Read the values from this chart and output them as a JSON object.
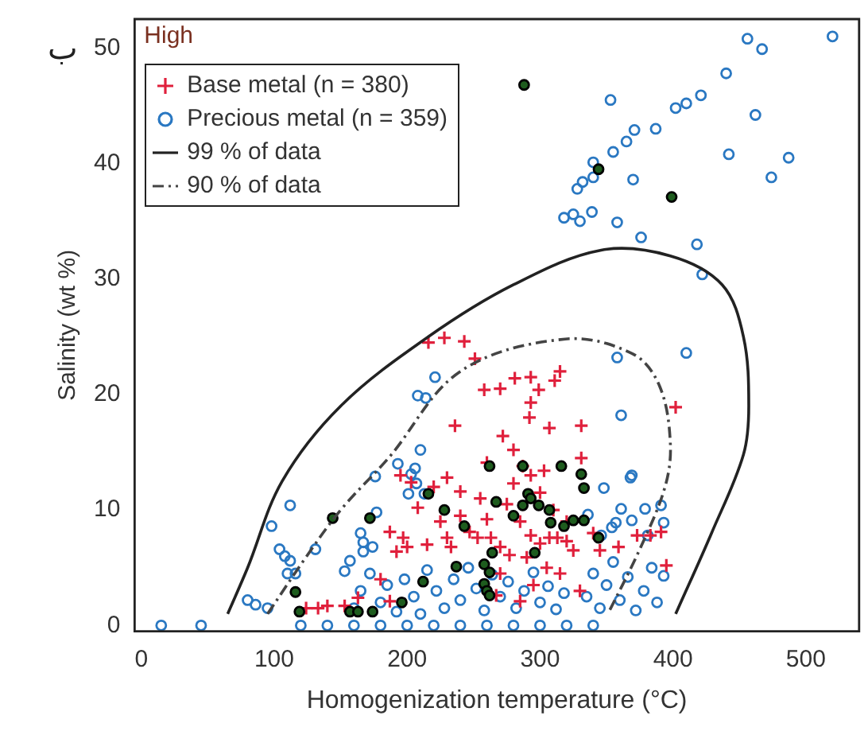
{
  "chart_data": {
    "type": "scatter",
    "title": "High",
    "xlabel": "Homogenization temperature (°C)",
    "ylabel": "Salinity (wt %)",
    "annotations": [
      "ب"
    ],
    "xlim": [
      -5,
      540
    ],
    "xticks": [
      0,
      100,
      200,
      300,
      400,
      500
    ],
    "ylim": [
      -0.5,
      52.5
    ],
    "yticks": [
      0,
      10,
      20,
      30,
      40,
      50
    ],
    "grid": false,
    "legend": "top left",
    "series": [
      {
        "name": "Base metal (n = 380)",
        "type": "scatter",
        "marker": "cross",
        "color": "#e0203c",
        "x": [
          216,
          228,
          243,
          251,
          258,
          270,
          281,
          293,
          311,
          315,
          293,
          299,
          236,
          272,
          292,
          307,
          331,
          402,
          280,
          260,
          287,
          331,
          303,
          195,
          203,
          230,
          240,
          208,
          220,
          187,
          197,
          200,
          192,
          233,
          247,
          230,
          260,
          263,
          253,
          270,
          277,
          293,
          300,
          307,
          313,
          320,
          290,
          280,
          293,
          133,
          140,
          153,
          163,
          187,
          267,
          285,
          395,
          391,
          383,
          373,
          359,
          300,
          310,
          320,
          275,
          255,
          285,
          305,
          295,
          315,
          325,
          340,
          345,
          330,
          270,
          240,
          225,
          215,
          124,
          180
        ],
        "values": [
          24.5,
          24.9,
          24.6,
          23.1,
          20.4,
          20.5,
          21.4,
          21.5,
          21.2,
          22,
          19.3,
          20.4,
          17.3,
          16.4,
          18,
          17.1,
          17.3,
          18.9,
          15.2,
          14.1,
          13.8,
          14.5,
          13.4,
          13,
          12.4,
          12.8,
          11.6,
          10.2,
          12,
          8.1,
          7.6,
          6.8,
          6.4,
          6.8,
          8.1,
          7.6,
          9.2,
          7.6,
          7.6,
          6.8,
          6.1,
          7.8,
          7.1,
          7.6,
          7.6,
          7.3,
          5.9,
          12.3,
          13,
          1.5,
          1.7,
          1.7,
          2.4,
          2.1,
          2.6,
          2.1,
          5.2,
          8.1,
          7.8,
          7.8,
          6.8,
          11.5,
          10,
          9,
          10.5,
          11,
          9,
          5,
          3.5,
          4.5,
          6.5,
          8,
          6.5,
          3,
          4.5,
          9.5,
          9,
          7,
          1.5,
          4
        ]
      },
      {
        "name": "Precious metal (n = 359)",
        "type": "scatter",
        "marker": "circle",
        "color": "#2a78c2",
        "x": [
          456,
          467,
          520,
          440,
          353,
          462,
          421,
          410,
          402,
          387,
          371,
          365,
          355,
          340,
          442,
          487,
          474,
          370,
          340,
          332,
          328,
          339,
          325,
          318,
          330,
          358,
          376,
          418,
          422,
          410,
          358,
          361,
          221,
          208,
          214,
          210,
          193,
          206,
          176,
          369,
          112,
          98,
          104,
          108,
          112,
          110,
          116,
          131,
          80,
          86,
          95,
          203,
          207,
          213,
          201,
          177,
          165,
          167,
          157,
          153,
          167,
          174,
          336,
          348,
          368,
          361,
          369,
          379,
          391,
          393,
          357,
          346,
          354,
          381,
          393,
          160,
          165,
          172,
          180,
          185,
          192,
          198,
          205,
          210,
          215,
          222,
          228,
          235,
          240,
          246,
          252,
          258,
          264,
          270,
          276,
          282,
          288,
          295,
          300,
          306,
          312,
          318,
          345,
          350,
          355,
          360,
          366,
          372,
          378,
          384,
          388,
          340,
          335,
          15,
          45,
          120,
          140,
          160,
          180,
          200,
          220,
          240,
          260,
          280,
          300,
          320,
          340
        ],
        "values": [
          50.8,
          49.9,
          51,
          47.8,
          45.5,
          44.2,
          45.9,
          45.2,
          44.8,
          43,
          42.9,
          41.9,
          41,
          40.1,
          40.8,
          40.5,
          38.8,
          38.6,
          38.8,
          38.4,
          37.8,
          35.8,
          35.6,
          35.3,
          35,
          34.9,
          33.6,
          33,
          30.4,
          23.6,
          23.2,
          18.2,
          21.5,
          19.9,
          19.7,
          15.2,
          14,
          13.6,
          12.9,
          13,
          10.4,
          8.6,
          6.6,
          6,
          5.6,
          4.5,
          4.5,
          6.6,
          2.2,
          1.8,
          1.5,
          13.1,
          12.3,
          11.4,
          11.4,
          9.8,
          8,
          7.2,
          5.6,
          4.7,
          6.4,
          6.8,
          9.6,
          11.9,
          12.8,
          10.1,
          9.1,
          10.1,
          10.4,
          8.9,
          8.9,
          7.8,
          8.5,
          7.8,
          4.3,
          1.5,
          3,
          4.5,
          2,
          3.5,
          1.2,
          4,
          2.5,
          1,
          4.8,
          3,
          1.5,
          4,
          2.2,
          5,
          3.2,
          1.3,
          4.4,
          2.5,
          3.8,
          1.5,
          3,
          4.6,
          2,
          3.4,
          1.4,
          2.8,
          1.5,
          3.5,
          5.5,
          2.2,
          4.2,
          1.3,
          3,
          5,
          2,
          4.5,
          2.5,
          0,
          0,
          0,
          0,
          0,
          0,
          0,
          0,
          0,
          0,
          0,
          0,
          0,
          0
        ]
      },
      {
        "type": "scatter",
        "marker": "circle",
        "color": "#1e5c1e",
        "x": [
          288,
          344,
          399,
          116,
          119,
          144,
          172,
          216,
          228,
          157,
          163,
          174,
          196,
          212,
          237,
          243,
          262,
          267,
          258,
          262,
          258,
          260,
          262,
          264,
          280,
          287,
          287,
          291,
          293,
          299,
          296,
          307,
          308,
          318,
          316,
          325,
          331,
          333,
          333,
          344
        ],
        "values": [
          46.8,
          39.5,
          37.1,
          2.9,
          1.2,
          9.3,
          9.3,
          11.4,
          10,
          1.2,
          1.2,
          1.2,
          2,
          3.8,
          5.1,
          8.6,
          13.8,
          10.7,
          5.3,
          4.6,
          3.6,
          3,
          2.6,
          6.3,
          9.5,
          10.4,
          13.8,
          11.4,
          11,
          10.4,
          6.3,
          10,
          8.9,
          8.6,
          13.8,
          9.1,
          13.1,
          11.9,
          9.1,
          7.6
        ]
      },
      {
        "name": "99 % of data",
        "type": "line",
        "line_style": "solid",
        "color": "#222222",
        "x": [
          65,
          80,
          106,
          150,
          216,
          280,
          346,
          398,
          437,
          453,
          457,
          453,
          429,
          402
        ],
        "values": [
          1,
          5,
          12.5,
          19,
          25,
          29.5,
          32.5,
          32,
          29.5,
          25,
          19,
          14.8,
          8,
          1
        ]
      },
      {
        "name": "90 % of data",
        "type": "line",
        "line_style": "dashed",
        "color": "#444444",
        "x": [
          95,
          122,
          150,
          186,
          240,
          319,
          370,
          390,
          398,
          394,
          375,
          351
        ],
        "values": [
          1,
          5.6,
          10,
          14.5,
          22,
          24.8,
          23.5,
          20.7,
          15.8,
          12,
          6.6,
          1
        ]
      }
    ]
  }
}
